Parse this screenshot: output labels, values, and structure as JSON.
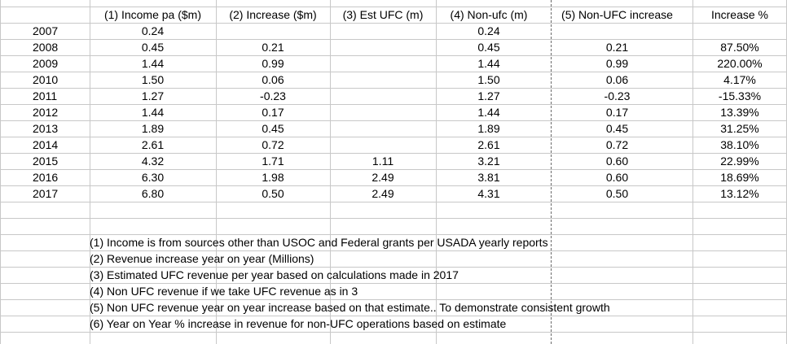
{
  "headers": [
    "(1) Income pa ($m)",
    "(2) Increase ($m)",
    "(3) Est UFC (m)",
    "(4) Non-ufc (m)",
    "(5) Non-UFC increase",
    "Increase %"
  ],
  "rows": [
    {
      "year": "2007",
      "income": "0.24",
      "increase": "",
      "est_ufc": "",
      "non_ufc": "0.24",
      "non_ufc_increase": "",
      "increase_pct": ""
    },
    {
      "year": "2008",
      "income": "0.45",
      "increase": "0.21",
      "est_ufc": "",
      "non_ufc": "0.45",
      "non_ufc_increase": "0.21",
      "increase_pct": "87.50%"
    },
    {
      "year": "2009",
      "income": "1.44",
      "increase": "0.99",
      "est_ufc": "",
      "non_ufc": "1.44",
      "non_ufc_increase": "0.99",
      "increase_pct": "220.00%"
    },
    {
      "year": "2010",
      "income": "1.50",
      "increase": "0.06",
      "est_ufc": "",
      "non_ufc": "1.50",
      "non_ufc_increase": "0.06",
      "increase_pct": "4.17%"
    },
    {
      "year": "2011",
      "income": "1.27",
      "increase": "-0.23",
      "est_ufc": "",
      "non_ufc": "1.27",
      "non_ufc_increase": "-0.23",
      "increase_pct": "-15.33%"
    },
    {
      "year": "2012",
      "income": "1.44",
      "increase": "0.17",
      "est_ufc": "",
      "non_ufc": "1.44",
      "non_ufc_increase": "0.17",
      "increase_pct": "13.39%"
    },
    {
      "year": "2013",
      "income": "1.89",
      "increase": "0.45",
      "est_ufc": "",
      "non_ufc": "1.89",
      "non_ufc_increase": "0.45",
      "increase_pct": "31.25%"
    },
    {
      "year": "2014",
      "income": "2.61",
      "increase": "0.72",
      "est_ufc": "",
      "non_ufc": "2.61",
      "non_ufc_increase": "0.72",
      "increase_pct": "38.10%"
    },
    {
      "year": "2015",
      "income": "4.32",
      "increase": "1.71",
      "est_ufc": "1.11",
      "non_ufc": "3.21",
      "non_ufc_increase": "0.60",
      "increase_pct": "22.99%"
    },
    {
      "year": "2016",
      "income": "6.30",
      "increase": "1.98",
      "est_ufc": "2.49",
      "non_ufc": "3.81",
      "non_ufc_increase": "0.60",
      "increase_pct": "18.69%"
    },
    {
      "year": "2017",
      "income": "6.80",
      "increase": "0.50",
      "est_ufc": "2.49",
      "non_ufc": "4.31",
      "non_ufc_increase": "0.50",
      "increase_pct": "13.12%"
    }
  ],
  "notes": [
    "(1) Income is from sources other than USOC and Federal grants per USADA yearly reports",
    "(2) Revenue increase year on year (Millions)",
    "(3) Estimated UFC revenue per year based on calculations made in 2017",
    "(4) Non UFC revenue if we take UFC revenue as in 3",
    "(5) Non UFC revenue year on year increase based on that estimate.. To demonstrate consistent growth",
    "(6) Year on Year % increase in revenue for non-UFC operations based on estimate"
  ],
  "colors": {
    "grid": "#c8c8c8",
    "dash": "#6b6b6b",
    "text": "#000000"
  }
}
